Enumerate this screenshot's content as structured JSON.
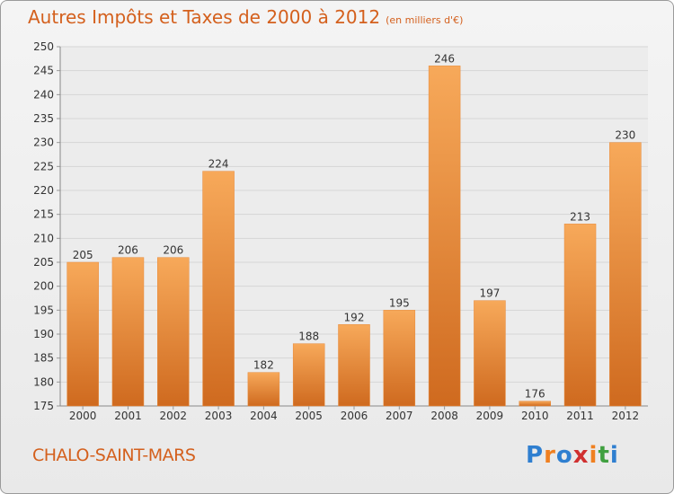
{
  "title": "Autres Impôts et Taxes de 2000 à 2012",
  "subtitle": "(en milliers d'€)",
  "commune": "CHALO-SAINT-MARS",
  "logo": {
    "text": "Proxiti",
    "colors": [
      "#2f7fd0",
      "#f08020",
      "#2f7fd0",
      "#d03030",
      "#f08020",
      "#40a040",
      "#2f7fd0"
    ]
  },
  "colors": {
    "bar_light": "#f7a95a",
    "bar_dark": "#cf6a1f",
    "title": "#d4601d"
  },
  "chart_data": {
    "type": "bar",
    "categories": [
      "2000",
      "2001",
      "2002",
      "2003",
      "2004",
      "2005",
      "2006",
      "2007",
      "2008",
      "2009",
      "2010",
      "2011",
      "2012"
    ],
    "values": [
      205,
      206,
      206,
      224,
      182,
      188,
      192,
      195,
      246,
      197,
      176,
      213,
      230
    ],
    "ylim": [
      175,
      250
    ],
    "yticks": [
      175,
      180,
      185,
      190,
      195,
      200,
      205,
      210,
      215,
      220,
      225,
      230,
      235,
      240,
      245,
      250
    ],
    "grid": true
  }
}
